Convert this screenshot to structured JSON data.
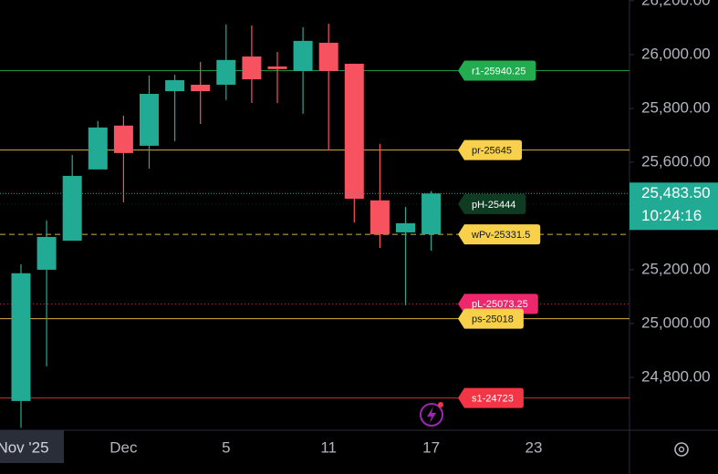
{
  "chart_data": {
    "type": "candlestick",
    "categories": [
      "Nov '25",
      null,
      null,
      null,
      "Dec",
      null,
      null,
      null,
      "5",
      null,
      null,
      null,
      "11",
      null,
      null,
      null,
      "17",
      null,
      null,
      null,
      "23"
    ],
    "open": [
      24712,
      25200,
      25308,
      25573,
      25736,
      25661,
      25864,
      25888,
      25888,
      25993,
      25956,
      25939,
      26044,
      25966,
      25458,
      25339,
      25332,
      null,
      null,
      null,
      null
    ],
    "high": [
      25220,
      25383,
      25627,
      25753,
      25773,
      25922,
      25925,
      25973,
      26112,
      26108,
      26010,
      26102,
      26115,
      25966,
      25668,
      25434,
      25492,
      null,
      null,
      null,
      null
    ],
    "low": [
      24612,
      24841,
      25308,
      25573,
      25451,
      25576,
      25678,
      25742,
      25831,
      25820,
      25820,
      25780,
      25644,
      25376,
      25281,
      25068,
      25271,
      null,
      null,
      null,
      null
    ],
    "close": [
      25187,
      25322,
      25549,
      25729,
      25634,
      25854,
      25905,
      25864,
      25980,
      25908,
      25946,
      26051,
      25939,
      25464,
      25332,
      25373,
      25483.5,
      null,
      null,
      null,
      null
    ],
    "up_color": "#22ab94",
    "down_color": "#f7525f",
    "ylim": [
      24610,
      26203
    ],
    "yticks": [
      {
        "value": 24800,
        "label": "24,800.00"
      },
      {
        "value": 25000,
        "label": "25,000.00"
      },
      {
        "value": 25200,
        "label": "25,200.00"
      },
      {
        "value": 25600,
        "label": "25,600.00"
      },
      {
        "value": 25800,
        "label": "25,800.00"
      },
      {
        "value": 26000,
        "label": "26,000.00"
      },
      {
        "value": 26200,
        "label": "26,200.00"
      }
    ],
    "levels": [
      {
        "label": "r1-25940.25",
        "value": 25940.25,
        "color": "#22ab4f",
        "text_color": "#ffffff",
        "style": "solid"
      },
      {
        "label": "pr-25645",
        "value": 25645,
        "color": "#f9d04a",
        "text_color": "#131722",
        "style": "solid"
      },
      {
        "label": "pH-25444",
        "value": 25444,
        "color": "#0e3b22",
        "text_color": "#ffffff",
        "style": "dotted"
      },
      {
        "label": "wPv-25331.5",
        "value": 25331.5,
        "color": "#f9d04a",
        "text_color": "#131722",
        "style": "dashed"
      },
      {
        "label": "pL-25073.25",
        "value": 25073.25,
        "color": "#f0266d",
        "text_color": "#ffffff",
        "style": "dotted"
      },
      {
        "label": "ps-25018",
        "value": 25018,
        "color": "#f9d04a",
        "text_color": "#131722",
        "style": "solid"
      },
      {
        "label": "s1-24723",
        "value": 24723,
        "color": "#f23645",
        "text_color": "#ffffff",
        "style": "solid"
      }
    ],
    "last_price": {
      "value": 25483.5,
      "label": "25,483.50"
    },
    "countdown": "10:24:16"
  }
}
